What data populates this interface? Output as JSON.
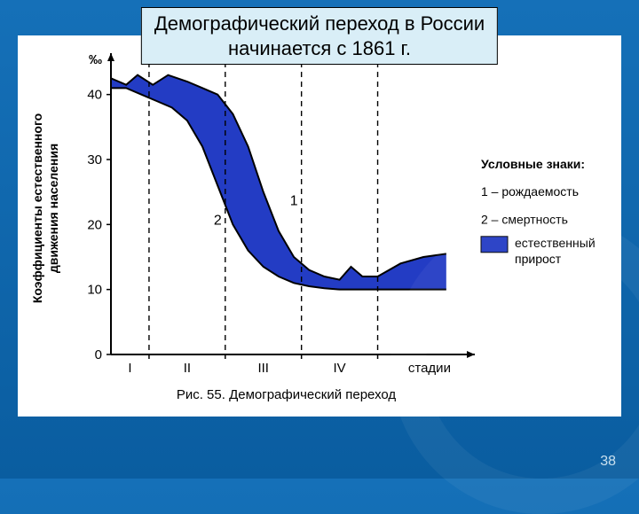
{
  "title_line1": "Демографический переход в России",
  "title_line2": "начинается с 1861 г.",
  "page_number": "38",
  "caption": "Рис. 55. Демографический переход",
  "legend_header": "Условные знаки:",
  "legend_item1": "1 – рождаемость",
  "legend_item2": "2 – смертность",
  "legend_item3": "естественный",
  "legend_item3b": "прирост",
  "y_axis_unit": "‰",
  "y_axis_label_line1": "Коэффициенты естественного",
  "y_axis_label_line2": "движения населения",
  "x_axis_end_label": "стадии",
  "chart": {
    "type": "area",
    "xlim": [
      0,
      4.6
    ],
    "ylim": [
      0,
      45
    ],
    "ytick_values": [
      0,
      10,
      20,
      30,
      40
    ],
    "xtick_labels": [
      "I",
      "II",
      "III",
      "IV"
    ],
    "stage_boundaries_x": [
      0.5,
      1.5,
      2.5,
      3.5
    ],
    "series_birth": {
      "label_num": "1",
      "color": "#000000",
      "line_width": 2,
      "points": [
        [
          0.0,
          42.5
        ],
        [
          0.2,
          41.5
        ],
        [
          0.35,
          43
        ],
        [
          0.55,
          41.5
        ],
        [
          0.75,
          43
        ],
        [
          1.0,
          42
        ],
        [
          1.2,
          41
        ],
        [
          1.4,
          40
        ],
        [
          1.6,
          37
        ],
        [
          1.8,
          32
        ],
        [
          2.0,
          25
        ],
        [
          2.2,
          19
        ],
        [
          2.4,
          15
        ],
        [
          2.6,
          13
        ],
        [
          2.8,
          12
        ],
        [
          3.0,
          11.5
        ],
        [
          3.15,
          13.5
        ],
        [
          3.3,
          12
        ],
        [
          3.5,
          12
        ],
        [
          3.8,
          14
        ],
        [
          4.1,
          15
        ],
        [
          4.4,
          15.5
        ]
      ]
    },
    "series_death": {
      "label_num": "2",
      "color": "#000000",
      "line_width": 2,
      "points": [
        [
          0.0,
          41
        ],
        [
          0.2,
          41
        ],
        [
          0.4,
          40
        ],
        [
          0.6,
          39
        ],
        [
          0.8,
          38
        ],
        [
          1.0,
          36
        ],
        [
          1.2,
          32
        ],
        [
          1.4,
          26
        ],
        [
          1.6,
          20
        ],
        [
          1.8,
          16
        ],
        [
          2.0,
          13.5
        ],
        [
          2.2,
          12
        ],
        [
          2.4,
          11
        ],
        [
          2.6,
          10.5
        ],
        [
          2.8,
          10.2
        ],
        [
          3.0,
          10
        ],
        [
          3.2,
          10
        ],
        [
          3.5,
          10
        ],
        [
          3.8,
          10
        ],
        [
          4.1,
          10
        ],
        [
          4.4,
          10
        ]
      ]
    },
    "fill_color": "#233cc4",
    "axis_color": "#000000",
    "dash_pattern": "6,5",
    "background_color": "#ffffff",
    "axis_label_fontsize": 14,
    "tick_fontsize": 15,
    "caption_fontsize": 15,
    "legend_fontsize": 14,
    "series_label_fontsize": 16
  }
}
